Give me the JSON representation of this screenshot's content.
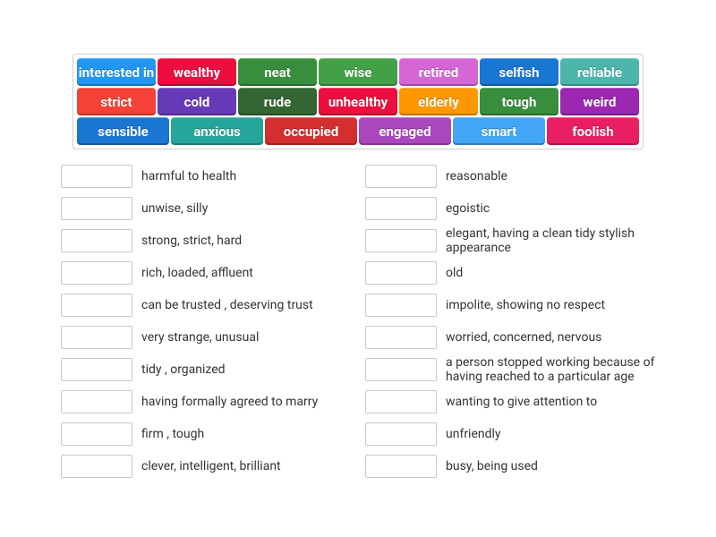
{
  "wordBank": {
    "tiles": [
      {
        "label": "interested in",
        "color": "#2196f3"
      },
      {
        "label": "wealthy",
        "color": "#ec0e3e"
      },
      {
        "label": "neat",
        "color": "#388e3c"
      },
      {
        "label": "wise",
        "color": "#43a047"
      },
      {
        "label": "retired",
        "color": "#d666d6"
      },
      {
        "label": "selfish",
        "color": "#1976d2"
      },
      {
        "label": "reliable",
        "color": "#4db6ac"
      },
      {
        "label": "strict",
        "color": "#f44336"
      },
      {
        "label": "cold",
        "color": "#673ab7"
      },
      {
        "label": "rude",
        "color": "#336633"
      },
      {
        "label": "unhealthy",
        "color": "#ec0e3e"
      },
      {
        "label": "elderly",
        "color": "#ff9800"
      },
      {
        "label": "tough",
        "color": "#388e3c"
      },
      {
        "label": "weird",
        "color": "#9c27b0"
      },
      {
        "label": "sensible",
        "color": "#1976d2"
      },
      {
        "label": "anxious",
        "color": "#26a69a"
      },
      {
        "label": "occupied",
        "color": "#d32f2f"
      },
      {
        "label": "engaged",
        "color": "#ab47bc"
      },
      {
        "label": "smart",
        "color": "#42a5f5"
      },
      {
        "label": "foolish",
        "color": "#e91e63"
      }
    ]
  },
  "definitions": {
    "left": [
      {
        "text": "harmful to health"
      },
      {
        "text": "unwise, silly"
      },
      {
        "text": "strong, strict, hard"
      },
      {
        "text": "rich, loaded, affluent"
      },
      {
        "text": "can be trusted , deserving trust"
      },
      {
        "text": "very strange, unusual"
      },
      {
        "text": "tidy , organized"
      },
      {
        "text": "having formally agreed to marry"
      },
      {
        "text": "firm , tough"
      },
      {
        "text": "clever, intelligent, brilliant"
      }
    ],
    "right": [
      {
        "text": "reasonable"
      },
      {
        "text": "egoistic"
      },
      {
        "text": "elegant, having a clean tidy stylish appearance"
      },
      {
        "text": "old"
      },
      {
        "text": "impolite, showing no respect"
      },
      {
        "text": "worried, concerned, nervous"
      },
      {
        "text": "a person stopped working because of having reached to a particular age"
      },
      {
        "text": "wanting to give attention to"
      },
      {
        "text": "unfriendly"
      },
      {
        "text": "busy, being used"
      }
    ]
  }
}
